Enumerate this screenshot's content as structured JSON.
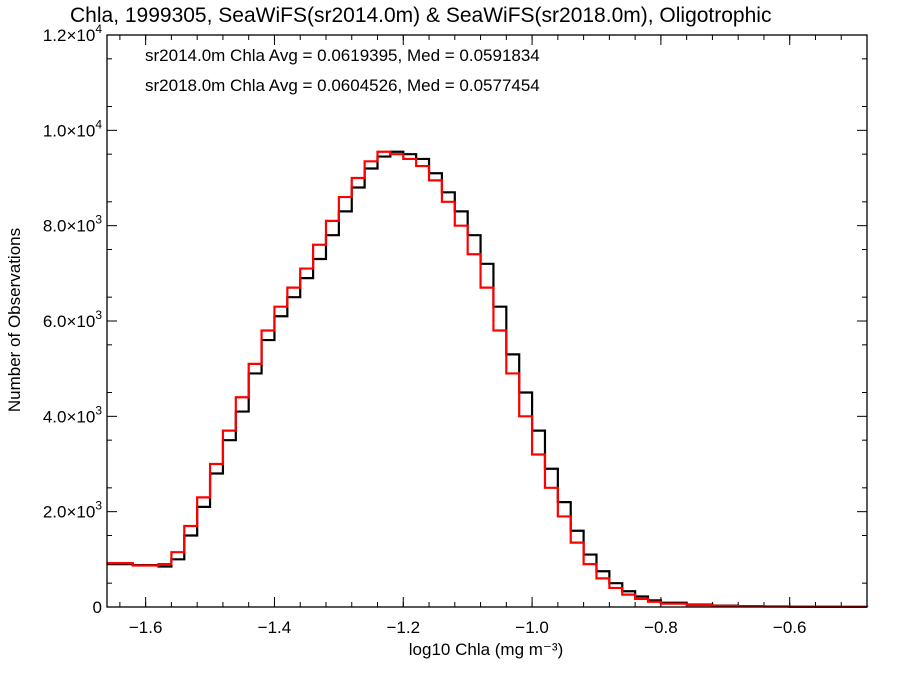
{
  "chart_data": {
    "type": "line",
    "title": "Chla, 1999305, SeaWiFS(sr2014.0m) & SeaWiFS(sr2018.0m), Oligotrophic",
    "xlabel": "log10 Chla (mg m⁻³)",
    "ylabel": "Number of Observations",
    "xlim": [
      -1.66,
      -0.48
    ],
    "ylim": [
      0,
      12000
    ],
    "x_ticks": [
      -1.6,
      -1.4,
      -1.2,
      -1.0,
      -0.8,
      -0.6
    ],
    "x_tick_labels": [
      "−1.6",
      "−1.4",
      "−1.2",
      "−1.0",
      "−0.8",
      "−0.6"
    ],
    "y_ticks": [
      0,
      2000,
      4000,
      6000,
      8000,
      10000,
      12000
    ],
    "y_tick_labels": [
      {
        "base": "0",
        "exp": ""
      },
      {
        "base": "2.0×10",
        "exp": "3"
      },
      {
        "base": "4.0×10",
        "exp": "3"
      },
      {
        "base": "6.0×10",
        "exp": "3"
      },
      {
        "base": "8.0×10",
        "exp": "3"
      },
      {
        "base": "1.0×10",
        "exp": "4"
      },
      {
        "base": "1.2×10",
        "exp": "4"
      }
    ],
    "annotations": [
      {
        "text": "sr2014.0m Chla Avg = 0.0619395, Med = 0.0591834",
        "color": "#000000"
      },
      {
        "text": "sr2018.0m Chla Avg = 0.0604526, Med = 0.0577454",
        "color": "#ff0000"
      }
    ],
    "series": [
      {
        "color": "#000000",
        "step": true,
        "points": [
          [
            -1.66,
            900
          ],
          [
            -1.62,
            880
          ],
          [
            -1.58,
            850
          ],
          [
            -1.56,
            1000
          ],
          [
            -1.54,
            1500
          ],
          [
            -1.52,
            2100
          ],
          [
            -1.5,
            2800
          ],
          [
            -1.48,
            3500
          ],
          [
            -1.46,
            4100
          ],
          [
            -1.44,
            4900
          ],
          [
            -1.42,
            5600
          ],
          [
            -1.4,
            6100
          ],
          [
            -1.38,
            6500
          ],
          [
            -1.36,
            6900
          ],
          [
            -1.34,
            7300
          ],
          [
            -1.32,
            7800
          ],
          [
            -1.3,
            8300
          ],
          [
            -1.28,
            8800
          ],
          [
            -1.26,
            9200
          ],
          [
            -1.24,
            9450
          ],
          [
            -1.22,
            9550
          ],
          [
            -1.2,
            9500
          ],
          [
            -1.18,
            9400
          ],
          [
            -1.16,
            9100
          ],
          [
            -1.14,
            8700
          ],
          [
            -1.12,
            8300
          ],
          [
            -1.1,
            7800
          ],
          [
            -1.08,
            7200
          ],
          [
            -1.06,
            6300
          ],
          [
            -1.04,
            5300
          ],
          [
            -1.02,
            4500
          ],
          [
            -1.0,
            3700
          ],
          [
            -0.98,
            2900
          ],
          [
            -0.96,
            2200
          ],
          [
            -0.94,
            1600
          ],
          [
            -0.92,
            1100
          ],
          [
            -0.9,
            750
          ],
          [
            -0.88,
            500
          ],
          [
            -0.86,
            330
          ],
          [
            -0.84,
            220
          ],
          [
            -0.82,
            140
          ],
          [
            -0.8,
            90
          ],
          [
            -0.76,
            50
          ],
          [
            -0.72,
            30
          ],
          [
            -0.68,
            20
          ],
          [
            -0.64,
            12
          ],
          [
            -0.6,
            8
          ],
          [
            -0.56,
            5
          ],
          [
            -0.52,
            3
          ],
          [
            -0.48,
            2
          ]
        ]
      },
      {
        "color": "#ff0000",
        "step": true,
        "points": [
          [
            -1.66,
            920
          ],
          [
            -1.62,
            870
          ],
          [
            -1.58,
            900
          ],
          [
            -1.56,
            1150
          ],
          [
            -1.54,
            1700
          ],
          [
            -1.52,
            2300
          ],
          [
            -1.5,
            3000
          ],
          [
            -1.48,
            3700
          ],
          [
            -1.46,
            4400
          ],
          [
            -1.44,
            5100
          ],
          [
            -1.42,
            5800
          ],
          [
            -1.4,
            6300
          ],
          [
            -1.38,
            6700
          ],
          [
            -1.36,
            7100
          ],
          [
            -1.34,
            7600
          ],
          [
            -1.32,
            8100
          ],
          [
            -1.3,
            8600
          ],
          [
            -1.28,
            9000
          ],
          [
            -1.26,
            9350
          ],
          [
            -1.24,
            9550
          ],
          [
            -1.22,
            9500
          ],
          [
            -1.2,
            9400
          ],
          [
            -1.18,
            9250
          ],
          [
            -1.16,
            8950
          ],
          [
            -1.14,
            8500
          ],
          [
            -1.12,
            8000
          ],
          [
            -1.1,
            7400
          ],
          [
            -1.08,
            6700
          ],
          [
            -1.06,
            5800
          ],
          [
            -1.04,
            4900
          ],
          [
            -1.02,
            4000
          ],
          [
            -1.0,
            3200
          ],
          [
            -0.98,
            2500
          ],
          [
            -0.96,
            1900
          ],
          [
            -0.94,
            1350
          ],
          [
            -0.92,
            900
          ],
          [
            -0.9,
            600
          ],
          [
            -0.88,
            400
          ],
          [
            -0.86,
            260
          ],
          [
            -0.84,
            170
          ],
          [
            -0.82,
            110
          ],
          [
            -0.8,
            70
          ],
          [
            -0.76,
            40
          ],
          [
            -0.72,
            25
          ],
          [
            -0.68,
            15
          ],
          [
            -0.64,
            10
          ],
          [
            -0.6,
            6
          ],
          [
            -0.56,
            4
          ],
          [
            -0.52,
            2
          ],
          [
            -0.48,
            1
          ]
        ]
      }
    ]
  }
}
